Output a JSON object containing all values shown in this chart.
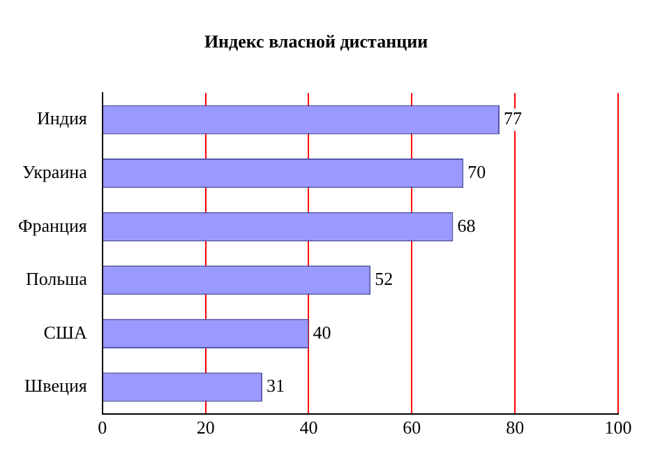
{
  "chart_data": {
    "type": "bar",
    "orientation": "horizontal",
    "title": "Индекс власной дистанции",
    "categories": [
      "Индия",
      "Украина",
      "Франция",
      "Польша",
      "США",
      "Швеция"
    ],
    "values": [
      77,
      70,
      68,
      52,
      40,
      31
    ],
    "color": "#9999ff",
    "xlim": [
      0,
      100
    ],
    "xticks": [
      0,
      20,
      40,
      60,
      80,
      100
    ],
    "grid": "x",
    "data_labels": true
  }
}
